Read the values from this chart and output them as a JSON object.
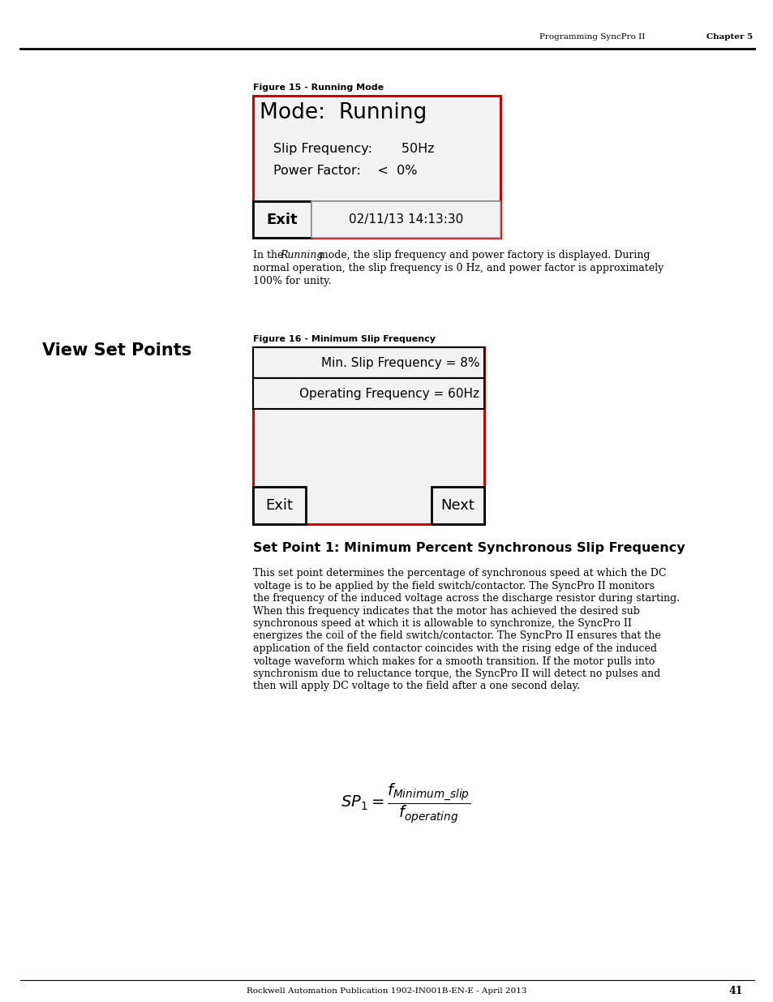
{
  "page_header_left": "Programming SyncPro II",
  "page_header_right": "Chapter 5",
  "page_number": "41",
  "footer_text": "Rockwell Automation Publication 1902-IN001B-EN-E - April 2013",
  "fig15_label": "Figure 15 - Running Mode",
  "fig15_line1": "Mode:  Running",
  "fig15_line2": "Slip Frequency:       50Hz",
  "fig15_line3": "Power Factor:    <  0%",
  "fig15_exit": "Exit",
  "fig15_datetime": "02/11/13 14:13:30",
  "section_title": "View Set Points",
  "fig16_label": "Figure 16 - Minimum Slip Frequency",
  "fig16_row1": "Min. Slip Frequency = 8%",
  "fig16_row2": "Operating Frequency = 60Hz",
  "fig16_exit": "Exit",
  "fig16_next": "Next",
  "section2_title": "Set Point 1: Minimum Percent Synchronous Slip Frequency",
  "para2_lines": [
    "This set point determines the percentage of synchronous speed at which the DC",
    "voltage is to be applied by the field switch/contactor. The SyncPro II monitors",
    "the frequency of the induced voltage across the discharge resistor during starting.",
    "When this frequency indicates that the motor has achieved the desired sub",
    "synchronous speed at which it is allowable to synchronize, the SyncPro II",
    "energizes the coil of the field switch/contactor. The SyncPro II ensures that the",
    "application of the field contactor coincides with the rising edge of the induced",
    "voltage waveform which makes for a smooth transition. If the motor pulls into",
    "synchronism due to reluctance torque, the SyncPro II will detect no pulses and",
    "then will apply DC voltage to the field after a one second delay."
  ],
  "red_color": "#cc0000",
  "black_color": "#000000",
  "bg_color": "#ffffff",
  "panel_bg": "#f2f2f2"
}
